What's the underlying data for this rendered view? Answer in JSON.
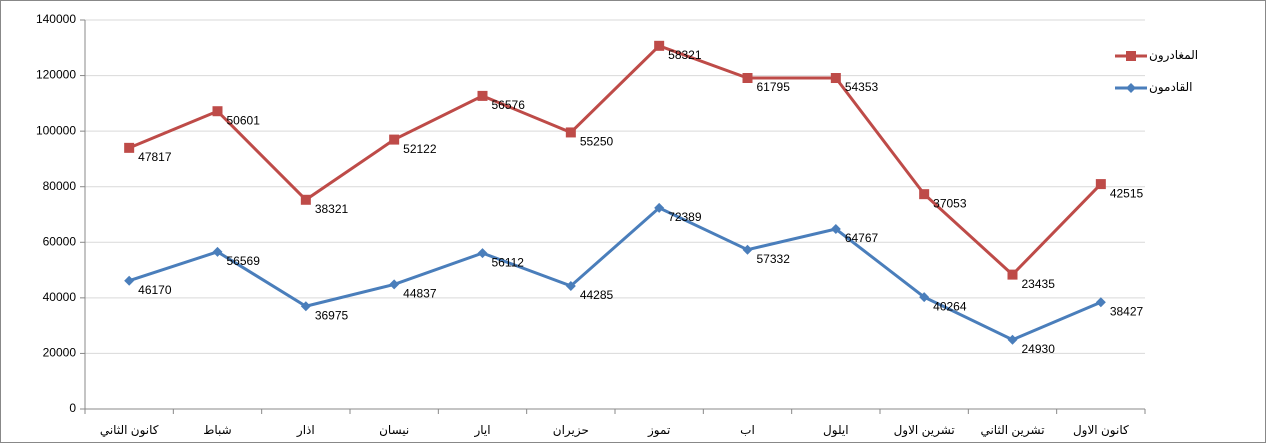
{
  "chart_data": {
    "type": "line",
    "stacked": true,
    "categories": [
      "كانون الثاني",
      "شباط",
      "اذار",
      "نيسان",
      "ايار",
      "حزيران",
      "تموز",
      "اب",
      "ايلول",
      "تشرين الاول",
      "تشرين الثاني",
      "كانون الاول"
    ],
    "series": [
      {
        "name": "القادمون",
        "color": "#4a7ebb",
        "marker": "diamond",
        "values": [
          46170,
          56569,
          36975,
          44837,
          56112,
          44285,
          72389,
          57332,
          64767,
          40264,
          24930,
          38427
        ]
      },
      {
        "name": "المغادرون",
        "color": "#be4b48",
        "marker": "square",
        "values": [
          47817,
          50601,
          38321,
          52122,
          56576,
          55250,
          58321,
          61795,
          54353,
          37053,
          23435,
          42515
        ]
      }
    ],
    "ylim": [
      0,
      140000
    ],
    "yticks": [
      0,
      20000,
      40000,
      60000,
      80000,
      100000,
      120000,
      140000
    ],
    "grid": true,
    "legend": "right",
    "data_labels": true
  }
}
